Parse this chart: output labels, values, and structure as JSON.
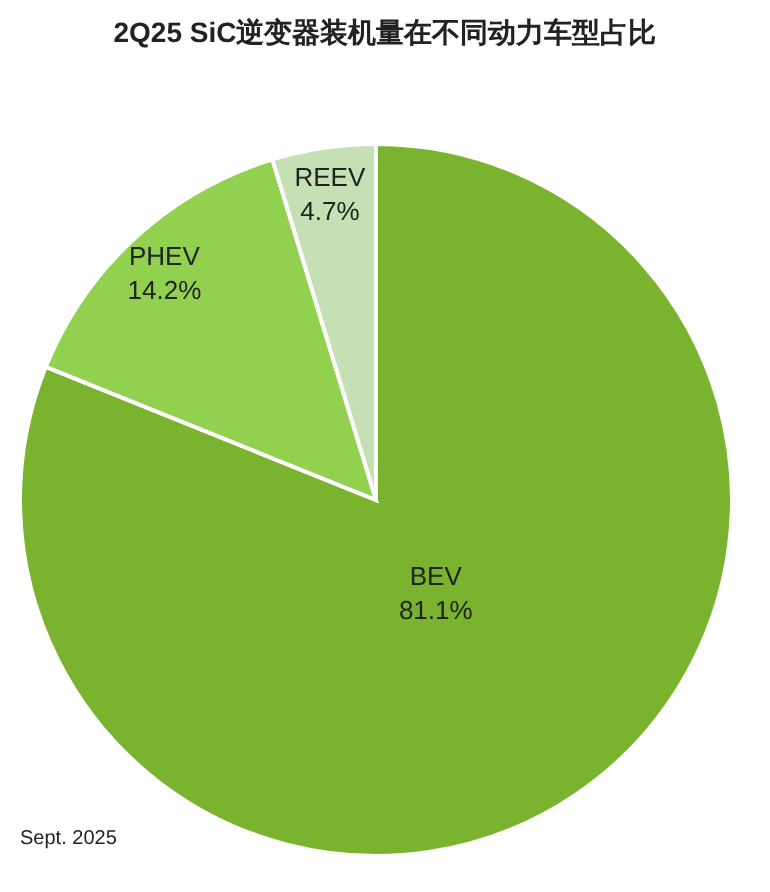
{
  "chart_data": {
    "type": "pie",
    "title": "2Q25 SiC逆变器装机量在不同动力车型占比",
    "categories": [
      "BEV",
      "PHEV",
      "REEV"
    ],
    "values": [
      81.1,
      14.2,
      4.7
    ],
    "value_labels": [
      "81.1%",
      "14.2%",
      "4.7%"
    ],
    "colors": [
      "#7ab32e",
      "#92d050",
      "#c5e0b4"
    ],
    "annotations": [
      "Sept. 2025"
    ]
  }
}
